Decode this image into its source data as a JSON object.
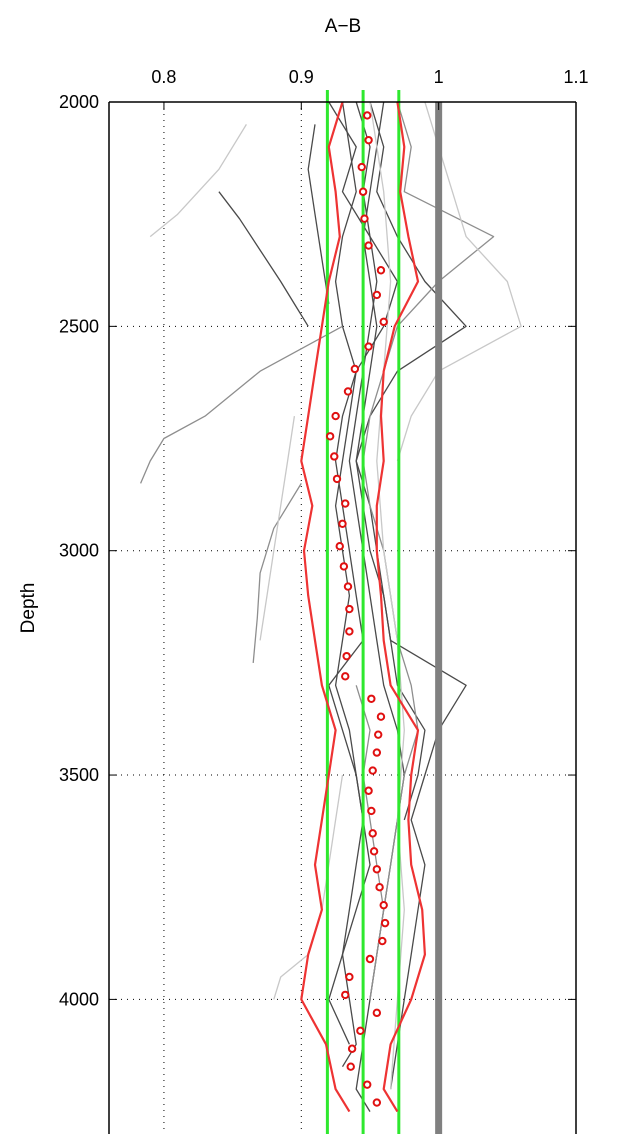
{
  "chart_data": {
    "type": "line",
    "title": "A−B",
    "xlabel": "",
    "ylabel": "Depth",
    "x_axis_position": "top",
    "y_reversed": true,
    "xlim": [
      0.76,
      1.1
    ],
    "ylim": [
      2000,
      4300
    ],
    "xticks": [
      0.8,
      0.9,
      1,
      1.1
    ],
    "xtick_labels": [
      "0.8",
      "0.9",
      "1",
      "1.1"
    ],
    "yticks": [
      2000,
      2500,
      3000,
      3500,
      4000
    ],
    "ytick_labels": [
      "2000",
      "2500",
      "3000",
      "3500",
      "4000"
    ],
    "grid": "dotted",
    "colors": {
      "dark": "#4a4a4a",
      "mid": "#8e8e8e",
      "light": "#c8c8c8",
      "reference": "#808080",
      "band": "#2ee82e",
      "envelope": "#ee3333",
      "marker": "#e01010"
    },
    "reference_line": {
      "x": 1.0
    },
    "vertical_lines": [
      0.919,
      0.945,
      0.971
    ],
    "markers_depths": [
      2030,
      2085,
      2145,
      2200,
      2260,
      2320,
      2375,
      2430,
      2490,
      2545,
      2595,
      2645,
      2700,
      2745,
      2790,
      2840,
      2895,
      2940,
      2990,
      3035,
      3080,
      3130,
      3180,
      3235,
      3280,
      3330,
      3370,
      3410,
      3450,
      3490,
      3535,
      3580,
      3630,
      3670,
      3710,
      3750,
      3790,
      3830,
      3870,
      3910,
      3950,
      3990,
      4030,
      4070,
      4110,
      4150,
      4190,
      4230
    ],
    "markers": [
      0.948,
      0.949,
      0.944,
      0.945,
      0.946,
      0.949,
      0.958,
      0.955,
      0.96,
      0.949,
      0.939,
      0.934,
      0.925,
      0.921,
      0.924,
      0.926,
      0.932,
      0.93,
      0.928,
      0.931,
      0.934,
      0.935,
      0.935,
      0.933,
      0.932,
      0.951,
      0.958,
      0.956,
      0.955,
      0.952,
      0.949,
      0.951,
      0.952,
      0.953,
      0.955,
      0.957,
      0.96,
      0.961,
      0.959,
      0.95,
      0.935,
      0.932,
      0.955,
      0.943,
      0.937,
      0.936,
      0.948,
      0.955
    ],
    "envelope": {
      "depths": [
        2000,
        2100,
        2200,
        2300,
        2400,
        2500,
        2600,
        2700,
        2800,
        2900,
        3000,
        3100,
        3200,
        3300,
        3400,
        3500,
        3600,
        3700,
        3800,
        3900,
        4000,
        4100,
        4200,
        4250
      ],
      "lower": [
        0.93,
        0.92,
        0.925,
        0.928,
        0.92,
        0.915,
        0.91,
        0.905,
        0.9,
        0.908,
        0.902,
        0.905,
        0.91,
        0.915,
        0.925,
        0.92,
        0.915,
        0.91,
        0.915,
        0.905,
        0.9,
        0.918,
        0.925,
        0.935
      ],
      "upper": [
        0.97,
        0.975,
        0.972,
        0.978,
        0.985,
        0.968,
        0.96,
        0.958,
        0.96,
        0.955,
        0.955,
        0.958,
        0.96,
        0.965,
        0.985,
        0.98,
        0.978,
        0.98,
        0.988,
        0.99,
        0.98,
        0.965,
        0.96,
        0.97
      ]
    },
    "series": [
      {
        "shade": "dark",
        "depths": [
          2000,
          2100,
          2200,
          2300,
          2400,
          2500,
          2600,
          2700,
          2800,
          2900,
          3000,
          3100,
          3200,
          3300,
          3400,
          3500,
          3600,
          3700,
          3800,
          3900,
          4000,
          4100
        ],
        "values": [
          0.92,
          0.94,
          0.93,
          0.95,
          0.97,
          0.96,
          0.94,
          0.93,
          0.925,
          0.93,
          0.935,
          0.94,
          0.945,
          0.92,
          0.93,
          0.94,
          0.945,
          0.95,
          0.94,
          0.93,
          0.92,
          0.935
        ]
      },
      {
        "shade": "dark",
        "depths": [
          2000,
          2100,
          2200,
          2300,
          2400,
          2500,
          2600,
          2700,
          2800,
          2900,
          3000,
          3100,
          3200,
          3300,
          3400,
          3500,
          3600,
          3700,
          3800,
          3900,
          4000,
          4100,
          4200,
          4250
        ],
        "values": [
          0.94,
          0.95,
          0.945,
          0.95,
          0.955,
          0.95,
          0.945,
          0.94,
          0.935,
          0.94,
          0.945,
          0.95,
          0.955,
          0.96,
          0.97,
          0.975,
          0.97,
          0.965,
          0.96,
          0.955,
          0.95,
          0.945,
          0.94,
          0.95
        ]
      },
      {
        "shade": "dark",
        "depths": [
          2000,
          2100,
          2200,
          2300,
          2400,
          2500,
          2600,
          2700,
          2800,
          2900,
          3000,
          3100,
          3200,
          3300,
          3400,
          3500,
          3600
        ],
        "values": [
          0.95,
          0.96,
          0.955,
          0.97,
          0.99,
          1.02,
          0.97,
          0.95,
          0.94,
          0.945,
          0.95,
          0.96,
          0.965,
          0.97,
          0.99,
          0.985,
          0.975
        ]
      },
      {
        "shade": "dark",
        "depths": [
          2000,
          2100,
          2200,
          2300,
          2400,
          2500,
          2600,
          2700,
          2800,
          2900,
          3000,
          3100,
          3200,
          3300,
          3400,
          3500,
          3600,
          3700,
          3800,
          3900,
          4000,
          4100,
          4150
        ],
        "values": [
          0.93,
          0.935,
          0.94,
          0.93,
          0.925,
          0.93,
          0.94,
          0.935,
          0.93,
          0.925,
          0.93,
          0.935,
          0.93,
          0.925,
          0.935,
          0.94,
          0.945,
          0.94,
          0.935,
          0.93,
          0.935,
          0.94,
          0.93
        ]
      },
      {
        "shade": "dark",
        "depths": [
          2000,
          2100,
          2200,
          2300,
          2400,
          2500,
          2600,
          2700,
          2800,
          2900,
          3000,
          3100,
          3200,
          3300,
          3400,
          3500,
          3600,
          3700,
          3800,
          3900,
          4000,
          4100,
          4200
        ],
        "values": [
          0.96,
          0.955,
          0.95,
          0.945,
          0.95,
          0.955,
          0.95,
          0.945,
          0.94,
          0.95,
          0.955,
          0.96,
          0.965,
          1.02,
          1.0,
          0.99,
          0.98,
          0.99,
          0.985,
          0.98,
          0.975,
          0.97,
          0.965
        ]
      },
      {
        "shade": "dark",
        "depths": [
          2050,
          2150,
          2250,
          2350,
          2450
        ],
        "values": [
          0.91,
          0.905,
          0.91,
          0.915,
          0.92
        ]
      },
      {
        "shade": "dark",
        "depths": [
          2200,
          2260,
          2330,
          2400,
          2450,
          2500
        ],
        "values": [
          0.84,
          0.855,
          0.87,
          0.885,
          0.895,
          0.905
        ]
      },
      {
        "shade": "mid",
        "depths": [
          2000,
          2100,
          2200,
          2300,
          2400,
          2500,
          2600,
          2700,
          2800,
          2900,
          3000,
          3100,
          3200,
          3300,
          3400,
          3500,
          3600,
          3700,
          3800,
          3900,
          4000
        ],
        "values": [
          0.97,
          0.98,
          0.975,
          1.04,
          1.0,
          0.97,
          0.96,
          0.95,
          0.945,
          0.95,
          0.96,
          0.965,
          0.97,
          0.98,
          0.985,
          0.975,
          0.97,
          0.965,
          0.96,
          0.955,
          0.95
        ]
      },
      {
        "shade": "mid",
        "depths": [
          2500,
          2600,
          2700,
          2750,
          2800,
          2850
        ],
        "values": [
          0.93,
          0.87,
          0.83,
          0.8,
          0.79,
          0.783
        ]
      },
      {
        "shade": "mid",
        "depths": [
          2850,
          2950,
          3050,
          3150,
          3250
        ],
        "values": [
          0.9,
          0.88,
          0.87,
          0.868,
          0.865
        ]
      },
      {
        "shade": "mid",
        "depths": [
          3300,
          3400,
          3500,
          3600,
          3700,
          3800,
          3900,
          4000
        ],
        "values": [
          0.94,
          0.95,
          0.945,
          0.95,
          0.955,
          0.96,
          0.955,
          0.95
        ]
      },
      {
        "shade": "light",
        "depths": [
          2000,
          2100,
          2200,
          2300,
          2400,
          2500,
          2600,
          2700,
          2800
        ],
        "values": [
          0.99,
          1.0,
          1.01,
          1.02,
          1.05,
          1.06,
          1.0,
          0.98,
          0.97
        ]
      },
      {
        "shade": "light",
        "depths": [
          2050,
          2150,
          2250,
          2300
        ],
        "values": [
          0.86,
          0.84,
          0.81,
          0.79
        ]
      },
      {
        "shade": "light",
        "depths": [
          2700,
          2800,
          2900,
          3000,
          3100,
          3200
        ],
        "values": [
          0.895,
          0.89,
          0.885,
          0.88,
          0.875,
          0.87
        ]
      },
      {
        "shade": "light",
        "depths": [
          3500,
          3600,
          3700,
          3800,
          3900,
          3950,
          4000
        ],
        "values": [
          0.93,
          0.925,
          0.92,
          0.915,
          0.905,
          0.885,
          0.88
        ]
      },
      {
        "shade": "light",
        "depths": [
          2000,
          2200,
          2400,
          2600,
          2800,
          3000,
          3200,
          3400,
          3600,
          3800,
          4000,
          4200
        ],
        "values": [
          0.95,
          0.96,
          0.965,
          0.96,
          0.955,
          0.96,
          0.97,
          0.975,
          0.97,
          0.975,
          0.97,
          0.965
        ]
      }
    ]
  }
}
